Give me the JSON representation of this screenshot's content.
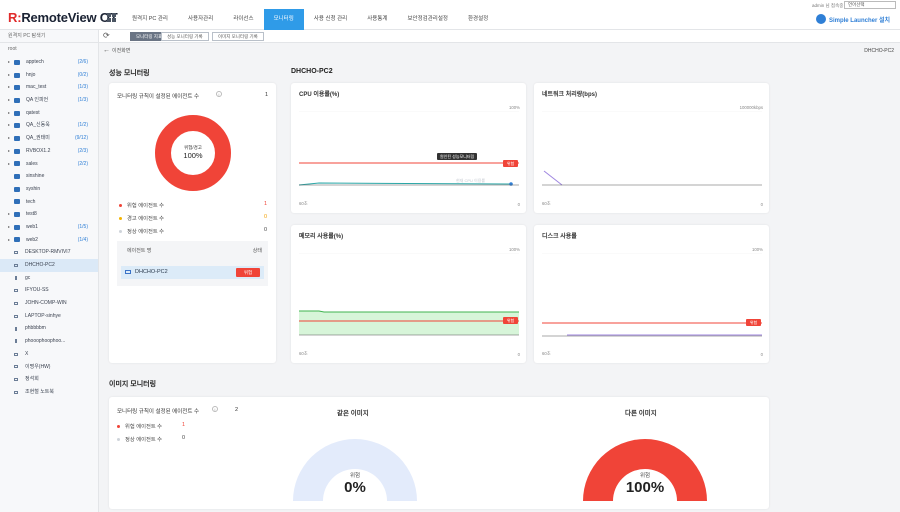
{
  "colors": {
    "accent": "#2f9be8",
    "danger": "#f04438",
    "warning": "#f4b400",
    "normal": "#cfd4da",
    "brand_red": "#e02b2b",
    "memory_fill": "#d7f5d9",
    "gauge_same": "#e3ebfb"
  },
  "header": {
    "logo_mark": "R:",
    "logo_text": "RemoteView OT",
    "nav": [
      "원격지 PC 관리",
      "사용자관리",
      "라이선스",
      "모니터링",
      "사용 신청 관리",
      "사용통계",
      "보안정검관리설정",
      "환경설정"
    ],
    "nav_active": 3,
    "user_line": "admin 님 접속중 | 로그아웃 |",
    "language": "언어선택",
    "launcher": "Simple Launcher 설치",
    "icons": [
      "grid-icon",
      "launcher-icon"
    ]
  },
  "sidebar": {
    "title": "원격지 PC 탐색기",
    "root": "root",
    "items": [
      {
        "label": "apptech",
        "count": "(2/6)",
        "type": "folder",
        "expandable": true
      },
      {
        "label": "hnjo",
        "count": "(0/2)",
        "type": "folder",
        "expandable": true
      },
      {
        "label": "mac_test",
        "count": "(1/3)",
        "type": "folder",
        "expandable": true
      },
      {
        "label": "QA 인피언",
        "count": "(1/3)",
        "type": "folder",
        "expandable": true
      },
      {
        "label": "qatest",
        "count": "",
        "type": "folder",
        "expandable": true
      },
      {
        "label": "QA_신동욱",
        "count": "(1/2)",
        "type": "folder",
        "expandable": true
      },
      {
        "label": "QA_권태미",
        "count": "(9/12)",
        "type": "folder",
        "expandable": true
      },
      {
        "label": "RVBOX1.2",
        "count": "(2/3)",
        "type": "folder",
        "expandable": true
      },
      {
        "label": "sales",
        "count": "(2/2)",
        "type": "folder",
        "expandable": true
      },
      {
        "label": "sinshine",
        "count": "",
        "type": "folder",
        "expandable": false
      },
      {
        "label": "syshin",
        "count": "",
        "type": "folder",
        "expandable": false
      },
      {
        "label": "tech",
        "count": "",
        "type": "folder",
        "expandable": false
      },
      {
        "label": "test8",
        "count": "",
        "type": "folder",
        "expandable": true
      },
      {
        "label": "web1",
        "count": "(1/5)",
        "type": "folder",
        "expandable": true
      },
      {
        "label": "web2",
        "count": "(1/4)",
        "type": "folder",
        "expandable": true
      },
      {
        "label": "DESKTOP-RMVIVI7",
        "count": "",
        "type": "pc",
        "expandable": false
      },
      {
        "label": "DHCHO-PC2",
        "count": "",
        "type": "pc",
        "expandable": false,
        "active": true
      },
      {
        "label": "gc",
        "count": "",
        "type": "pc-small",
        "expandable": false
      },
      {
        "label": "IFYOU-SS",
        "count": "",
        "type": "pc",
        "expandable": false
      },
      {
        "label": "JOHN-COMP-WIN",
        "count": "",
        "type": "pc",
        "expandable": false
      },
      {
        "label": "LAPTOP-sinhye",
        "count": "",
        "type": "pc",
        "expandable": false
      },
      {
        "label": "phbbbbm",
        "count": "",
        "type": "pc-small",
        "expandable": false
      },
      {
        "label": "phooophoophoo...",
        "count": "",
        "type": "pc-small",
        "expandable": false
      },
      {
        "label": "X",
        "count": "",
        "type": "pc",
        "expandable": false
      },
      {
        "label": "이명우(HW)",
        "count": "",
        "type": "pc",
        "expandable": false
      },
      {
        "label": "정석희",
        "count": "",
        "type": "pc",
        "expandable": false
      },
      {
        "label": "조현철 노트북",
        "count": "",
        "type": "pc",
        "expandable": false
      }
    ]
  },
  "toolbar": {
    "tabs": [
      "모니터링 지표",
      "성능 모니터링 기록",
      "이미지 모니터링 기록"
    ],
    "active_tab": 0
  },
  "main": {
    "back_label": "이전화면",
    "pc_name_right": "DHCHO-PC2",
    "perf_section_title": "성능 모니터링",
    "pc_title": "DHCHO-PC2",
    "perf_card": {
      "rule_label": "모니터링 규칙이 설정된 에이전트 수",
      "rule_count": "1",
      "donut_caption": "위험/경고",
      "donut_value": "100%",
      "legend": [
        {
          "label": "위험 에이전트 수",
          "value": "1",
          "color": "#f04438"
        },
        {
          "label": "경고 에이전트 수",
          "value": "0",
          "color": "#f4b400"
        },
        {
          "label": "정상 에이전트 수",
          "value": "0",
          "color": "#cfd4da"
        }
      ],
      "table_header_name": "에이전트 명",
      "table_header_state": "상태",
      "agent_name": "DHCHO-PC2",
      "agent_state": "위험"
    },
    "charts": {
      "cpu": {
        "title": "CPU 이용률(%)",
        "ymax": "100%",
        "x_start": "60초",
        "x_end": "0",
        "tag": "위험",
        "tooltip": "원인된 성능모니터링",
        "faint": "현재 CPU 이용률"
      },
      "network": {
        "title": "네트워크 처리량(bps)",
        "ymax": "100000kbps",
        "x_start": "60초",
        "x_end": "0"
      },
      "memory": {
        "title": "메모리 사용률(%)",
        "ymax": "100%",
        "x_start": "60초",
        "x_end": "0",
        "tag": "위험"
      },
      "disk": {
        "title": "디스크 사용률",
        "ymax": "100%",
        "x_start": "60초",
        "x_end": "0",
        "tag": "위험"
      }
    },
    "image_section_title": "이미지 모니터링",
    "image_card": {
      "rule_label": "모니터링 규칙이 설정된 에이전트 수",
      "rule_count": "2",
      "legend": [
        {
          "label": "위험 에이전트 수",
          "value": "1",
          "color": "#f04438"
        },
        {
          "label": "정상 에이전트 수",
          "value": "0",
          "color": "#cfd4da"
        }
      ],
      "gauge_same": {
        "title": "같은 이미지",
        "label": "위험",
        "value": "0%",
        "fraction": 0
      },
      "gauge_diff": {
        "title": "다른 이미지",
        "label": "위험",
        "value": "100%",
        "fraction": 1
      }
    }
  }
}
